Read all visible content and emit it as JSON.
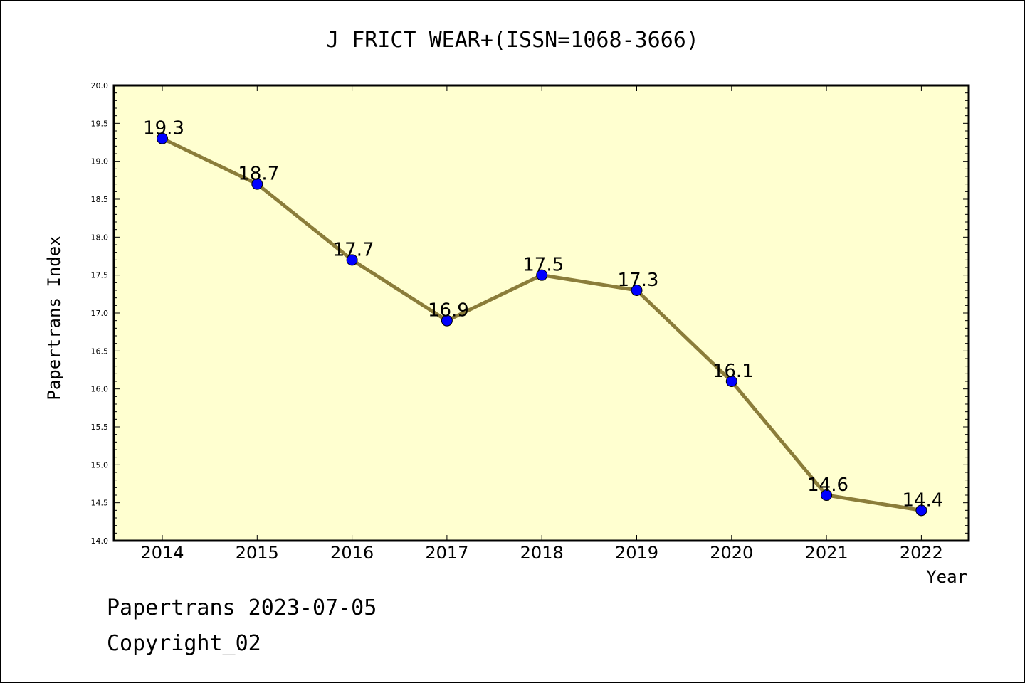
{
  "chart_data": {
    "type": "line",
    "title": "J FRICT WEAR+(ISSN=1068-3666)",
    "xlabel": "Year",
    "ylabel": "Papertrans Index",
    "categories": [
      "2014",
      "2015",
      "2016",
      "2017",
      "2018",
      "2019",
      "2020",
      "2021",
      "2022"
    ],
    "series": [
      {
        "values": [
          19.3,
          18.7,
          17.7,
          16.9,
          17.5,
          17.3,
          16.1,
          14.6,
          14.4
        ],
        "labels": [
          "19.3",
          "18.7",
          "17.7",
          "16.9",
          "17.5",
          "17.3",
          "16.1",
          "14.6",
          "14.4"
        ]
      }
    ],
    "ylim": [
      14.0,
      20.0
    ],
    "yticks": [
      "14.0",
      "14.5",
      "15.0",
      "15.5",
      "16.0",
      "16.5",
      "17.0",
      "17.5",
      "18.0",
      "18.5",
      "19.0",
      "19.5",
      "20.0"
    ],
    "grid": false,
    "legend": "none",
    "colors": {
      "plot_background": "#ffffd0",
      "line": "#8b7d3a",
      "marker": "#0000ff"
    }
  },
  "footer": {
    "line1": "Papertrans 2023-07-05",
    "line2": "Copyright_02"
  }
}
